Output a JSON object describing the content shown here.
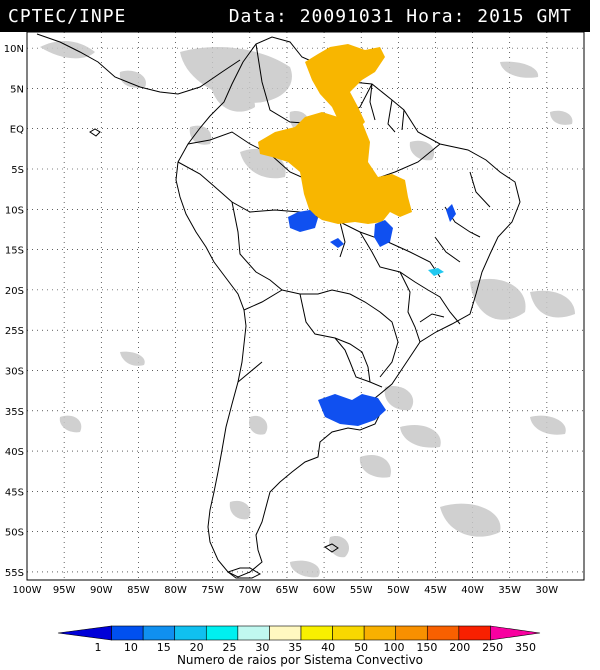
{
  "header": {
    "agency": "CPTEC/INPE",
    "date_label": "Data:",
    "date": "20091031",
    "time_label": "Hora:",
    "time": "2015 GMT"
  },
  "map": {
    "lon_range": [
      -100,
      -25
    ],
    "lat_range": [
      -56,
      12
    ],
    "lat_ticks": [
      "10N",
      "5N",
      "EQ",
      "5S",
      "10S",
      "15S",
      "20S",
      "25S",
      "30S",
      "35S",
      "40S",
      "45S",
      "50S",
      "55S"
    ],
    "lat_values": [
      10,
      5,
      0,
      -5,
      -10,
      -15,
      -20,
      -25,
      -30,
      -35,
      -40,
      -45,
      -50,
      -55
    ],
    "lon_ticks": [
      "100W",
      "95W",
      "90W",
      "85W",
      "80W",
      "75W",
      "70W",
      "65W",
      "60W",
      "55W",
      "50W",
      "45W",
      "40W",
      "35W",
      "30W"
    ],
    "lon_values": [
      -100,
      -95,
      -90,
      -85,
      -80,
      -75,
      -70,
      -65,
      -60,
      -55,
      -50,
      -45,
      -40,
      -35,
      -30
    ],
    "colors": {
      "land_fill": "#ffffff",
      "border": "#000000",
      "cloud": "#c8c8c8",
      "cluster_orange": "#f8b600",
      "cluster_blue": "#1050f0",
      "cluster_cyan": "#20c8f0"
    }
  },
  "legend": {
    "title": "Numero de raios por Sistema Convectivo",
    "values": [
      "1",
      "10",
      "15",
      "20",
      "25",
      "30",
      "35",
      "40",
      "50",
      "100",
      "150",
      "200",
      "250",
      "350"
    ],
    "colors": [
      "#0000d8",
      "#0050f0",
      "#1090f0",
      "#10c0f0",
      "#00f0f0",
      "#c0f8f0",
      "#fff8c0",
      "#f8f000",
      "#f8d800",
      "#f8b000",
      "#f89000",
      "#f86000",
      "#f82000",
      "#f800a0"
    ]
  }
}
